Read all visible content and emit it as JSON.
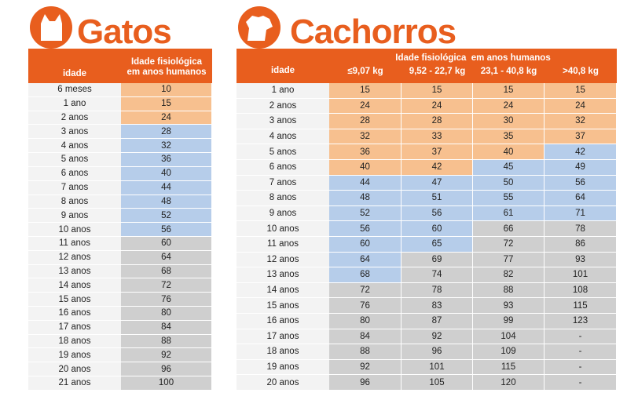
{
  "colors": {
    "brand_orange": "#e85e1e",
    "young": "#f7c08f",
    "adult": "#b6cdea",
    "senior": "#cfcfcf",
    "panel": "#f3f3f3"
  },
  "cats": {
    "title": "Gatos",
    "logo_icon": "cat-head-icon",
    "header": {
      "age": "idade",
      "equivalent_line1": "Idade fisiológica",
      "equivalent_line2": "em anos humanos"
    },
    "rows": [
      {
        "age": "6 meses",
        "value": "10",
        "tone": "o"
      },
      {
        "age": "1 ano",
        "value": "15",
        "tone": "o"
      },
      {
        "age": "2 anos",
        "value": "24",
        "tone": "o"
      },
      {
        "age": "3 anos",
        "value": "28",
        "tone": "b"
      },
      {
        "age": "4 anos",
        "value": "32",
        "tone": "b"
      },
      {
        "age": "5 anos",
        "value": "36",
        "tone": "b"
      },
      {
        "age": "6 anos",
        "value": "40",
        "tone": "b"
      },
      {
        "age": "7 anos",
        "value": "44",
        "tone": "b"
      },
      {
        "age": "8 anos",
        "value": "48",
        "tone": "b"
      },
      {
        "age": "9 anos",
        "value": "52",
        "tone": "b"
      },
      {
        "age": "10 anos",
        "value": "56",
        "tone": "b"
      },
      {
        "age": "11 anos",
        "value": "60",
        "tone": "g"
      },
      {
        "age": "12 anos",
        "value": "64",
        "tone": "g"
      },
      {
        "age": "13 anos",
        "value": "68",
        "tone": "g"
      },
      {
        "age": "14 anos",
        "value": "72",
        "tone": "g"
      },
      {
        "age": "15 anos",
        "value": "76",
        "tone": "g"
      },
      {
        "age": "16 anos",
        "value": "80",
        "tone": "g"
      },
      {
        "age": "17 anos",
        "value": "84",
        "tone": "g"
      },
      {
        "age": "18 anos",
        "value": "88",
        "tone": "g"
      },
      {
        "age": "19 anos",
        "value": "92",
        "tone": "g"
      },
      {
        "age": "20 anos",
        "value": "96",
        "tone": "g"
      },
      {
        "age": "21 anos",
        "value": "100",
        "tone": "g"
      }
    ]
  },
  "dogs": {
    "title": "Cachorros",
    "logo_icon": "dog-head-icon",
    "header": {
      "age": "idade",
      "equivalent": "Idade fisiológica  em anos humanos",
      "weights": [
        "≤9,07 kg",
        "9,52 - 22,7 kg",
        "23,1 - 40,8 kg",
        ">40,8 kg"
      ]
    },
    "rows": [
      {
        "age": "1 ano",
        "cells": [
          [
            "15",
            "o"
          ],
          [
            "15",
            "o"
          ],
          [
            "15",
            "o"
          ],
          [
            "15",
            "o"
          ]
        ]
      },
      {
        "age": "2 anos",
        "cells": [
          [
            "24",
            "o"
          ],
          [
            "24",
            "o"
          ],
          [
            "24",
            "o"
          ],
          [
            "24",
            "o"
          ]
        ]
      },
      {
        "age": "3 anos",
        "cells": [
          [
            "28",
            "o"
          ],
          [
            "28",
            "o"
          ],
          [
            "30",
            "o"
          ],
          [
            "32",
            "o"
          ]
        ]
      },
      {
        "age": "4 anos",
        "cells": [
          [
            "32",
            "o"
          ],
          [
            "33",
            "o"
          ],
          [
            "35",
            "o"
          ],
          [
            "37",
            "o"
          ]
        ]
      },
      {
        "age": "5 anos",
        "cells": [
          [
            "36",
            "o"
          ],
          [
            "37",
            "o"
          ],
          [
            "40",
            "o"
          ],
          [
            "42",
            "b"
          ]
        ]
      },
      {
        "age": "6 anos",
        "cells": [
          [
            "40",
            "o"
          ],
          [
            "42",
            "o"
          ],
          [
            "45",
            "b"
          ],
          [
            "49",
            "b"
          ]
        ]
      },
      {
        "age": "7 anos",
        "cells": [
          [
            "44",
            "b"
          ],
          [
            "47",
            "b"
          ],
          [
            "50",
            "b"
          ],
          [
            "56",
            "b"
          ]
        ]
      },
      {
        "age": "8 anos",
        "cells": [
          [
            "48",
            "b"
          ],
          [
            "51",
            "b"
          ],
          [
            "55",
            "b"
          ],
          [
            "64",
            "b"
          ]
        ]
      },
      {
        "age": "9 anos",
        "cells": [
          [
            "52",
            "b"
          ],
          [
            "56",
            "b"
          ],
          [
            "61",
            "b"
          ],
          [
            "71",
            "b"
          ]
        ]
      },
      {
        "age": "10 anos",
        "cells": [
          [
            "56",
            "b"
          ],
          [
            "60",
            "b"
          ],
          [
            "66",
            "g"
          ],
          [
            "78",
            "g"
          ]
        ]
      },
      {
        "age": "11 anos",
        "cells": [
          [
            "60",
            "b"
          ],
          [
            "65",
            "b"
          ],
          [
            "72",
            "g"
          ],
          [
            "86",
            "g"
          ]
        ]
      },
      {
        "age": "12 anos",
        "cells": [
          [
            "64",
            "b"
          ],
          [
            "69",
            "g"
          ],
          [
            "77",
            "g"
          ],
          [
            "93",
            "g"
          ]
        ]
      },
      {
        "age": "13 anos",
        "cells": [
          [
            "68",
            "b"
          ],
          [
            "74",
            "g"
          ],
          [
            "82",
            "g"
          ],
          [
            "101",
            "g"
          ]
        ]
      },
      {
        "age": "14 anos",
        "cells": [
          [
            "72",
            "g"
          ],
          [
            "78",
            "g"
          ],
          [
            "88",
            "g"
          ],
          [
            "108",
            "g"
          ]
        ]
      },
      {
        "age": "15 anos",
        "cells": [
          [
            "76",
            "g"
          ],
          [
            "83",
            "g"
          ],
          [
            "93",
            "g"
          ],
          [
            "115",
            "g"
          ]
        ]
      },
      {
        "age": "16 anos",
        "cells": [
          [
            "80",
            "g"
          ],
          [
            "87",
            "g"
          ],
          [
            "99",
            "g"
          ],
          [
            "123",
            "g"
          ]
        ]
      },
      {
        "age": "17 anos",
        "cells": [
          [
            "84",
            "g"
          ],
          [
            "92",
            "g"
          ],
          [
            "104",
            "g"
          ],
          [
            "-",
            "g"
          ]
        ]
      },
      {
        "age": "18 anos",
        "cells": [
          [
            "88",
            "g"
          ],
          [
            "96",
            "g"
          ],
          [
            "109",
            "g"
          ],
          [
            "-",
            "g"
          ]
        ]
      },
      {
        "age": "19 anos",
        "cells": [
          [
            "92",
            "g"
          ],
          [
            "101",
            "g"
          ],
          [
            "115",
            "g"
          ],
          [
            "-",
            "g"
          ]
        ]
      },
      {
        "age": "20 anos",
        "cells": [
          [
            "96",
            "g"
          ],
          [
            "105",
            "g"
          ],
          [
            "120",
            "g"
          ],
          [
            "-",
            "g"
          ]
        ]
      }
    ]
  }
}
